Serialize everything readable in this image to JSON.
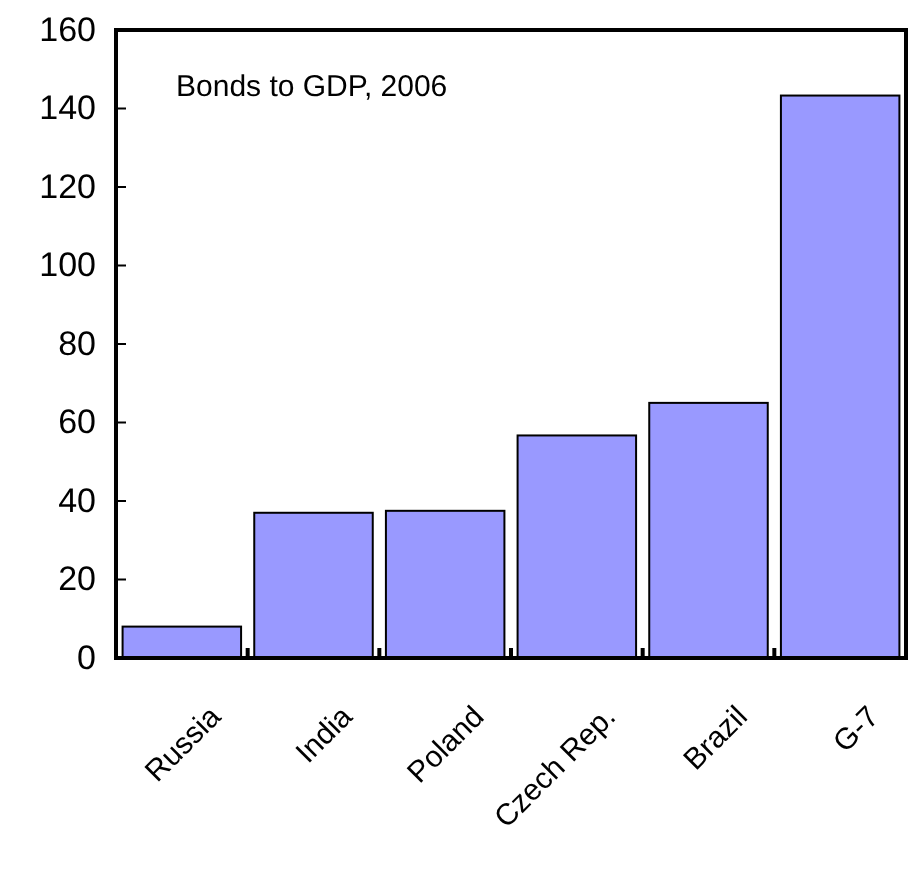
{
  "chart_data": {
    "type": "bar",
    "title": "Bonds to GDP, 2006",
    "categories": [
      "Russia",
      "India",
      "Poland",
      "Czech Rep.",
      "Brazil",
      "G-7"
    ],
    "values": [
      8,
      37,
      37.5,
      56.7,
      65,
      143.3
    ],
    "color": "#9999ff",
    "ylim": [
      0,
      160
    ],
    "yticks": [
      0,
      20,
      40,
      60,
      80,
      100,
      120,
      140,
      160
    ]
  }
}
